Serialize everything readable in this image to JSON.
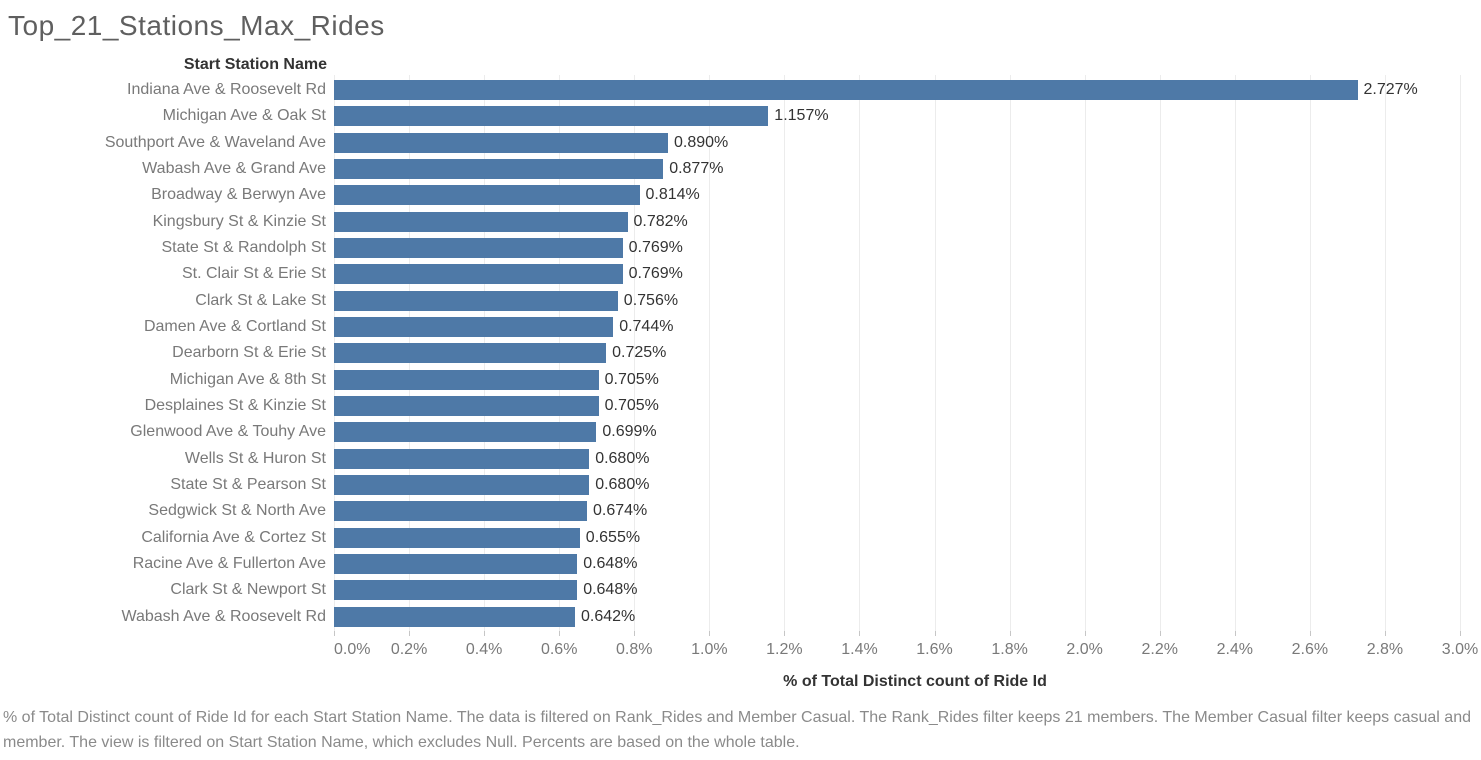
{
  "title": "Top_21_Stations_Max_Rides",
  "caption": "% of Total Distinct count of Ride Id for each Start Station Name. The data is filtered on Rank_Rides and Member Casual. The Rank_Rides filter keeps 21 members. The Member Casual filter keeps casual and member. The view is filtered on Start Station Name, which excludes Null. Percents are based on the whole table.",
  "chart_data": {
    "type": "bar",
    "orientation": "horizontal",
    "title": "Top_21_Stations_Max_Rides",
    "column_header": "Start Station Name",
    "xlabel": "% of Total Distinct count of Ride Id",
    "ylabel": "Start Station Name",
    "xlim": [
      0.0,
      3.0
    ],
    "grid": "vertical",
    "bar_color": "#4e79a7",
    "x_tick_labels": [
      "0.0%",
      "0.2%",
      "0.4%",
      "0.6%",
      "0.8%",
      "1.0%",
      "1.2%",
      "1.4%",
      "1.6%",
      "1.8%",
      "2.0%",
      "2.2%",
      "2.4%",
      "2.6%",
      "2.8%",
      "3.0%"
    ],
    "categories": [
      "Indiana Ave & Roosevelt Rd",
      "Michigan Ave & Oak St",
      "Southport Ave & Waveland Ave",
      "Wabash Ave & Grand Ave",
      "Broadway & Berwyn Ave",
      "Kingsbury St & Kinzie St",
      "State St & Randolph St",
      "St. Clair St & Erie St",
      "Clark St & Lake St",
      "Damen Ave & Cortland St",
      "Dearborn St & Erie St",
      "Michigan Ave & 8th St",
      "Desplaines St & Kinzie St",
      "Glenwood Ave & Touhy Ave",
      "Wells St & Huron St",
      "State St & Pearson St",
      "Sedgwick St & North Ave",
      "California Ave & Cortez St",
      "Racine Ave & Fullerton Ave",
      "Clark St & Newport St",
      "Wabash Ave & Roosevelt Rd"
    ],
    "values": [
      2.727,
      1.157,
      0.89,
      0.877,
      0.814,
      0.782,
      0.769,
      0.769,
      0.756,
      0.744,
      0.725,
      0.705,
      0.705,
      0.699,
      0.68,
      0.68,
      0.674,
      0.655,
      0.648,
      0.648,
      0.642
    ],
    "value_labels": [
      "2.727%",
      "1.157%",
      "0.890%",
      "0.877%",
      "0.814%",
      "0.782%",
      "0.769%",
      "0.769%",
      "0.756%",
      "0.744%",
      "0.725%",
      "0.705%",
      "0.705%",
      "0.699%",
      "0.680%",
      "0.680%",
      "0.674%",
      "0.655%",
      "0.648%",
      "0.648%",
      "0.642%"
    ]
  }
}
